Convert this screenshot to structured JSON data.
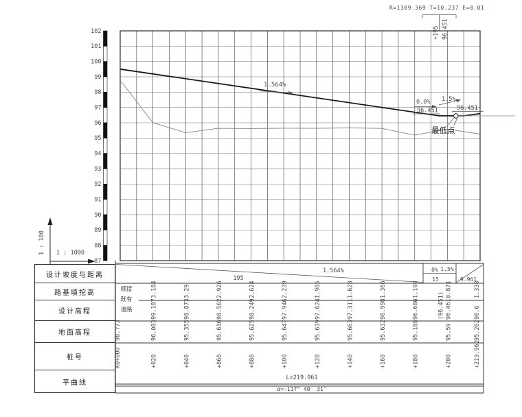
{
  "header_note": {
    "curve_params": "R=1309.369 T=10.237 E=0.01",
    "event_station": "+195",
    "event_elevation": "96.451"
  },
  "profile": {
    "main_grade": "1.564%",
    "flat_grade": "0.0%",
    "flat_elev": "96.451",
    "up_grade": "1.5%",
    "up_elev": "96.451",
    "low_point": "最低点"
  },
  "scales": {
    "vertical": "1 : 100",
    "horizontal": "1 : 1000"
  },
  "axis": {
    "elevations": [
      "102",
      "101",
      "100",
      "99",
      "98",
      "97",
      "96",
      "95",
      "94",
      "93",
      "92",
      "91",
      "90",
      "89",
      "88",
      "87"
    ]
  },
  "table": {
    "row_headers": [
      "设计坡度与距离",
      "路基填挖高",
      "设计高程",
      "地面高程",
      "桩号",
      "平曲线"
    ],
    "slope": {
      "main_grade": "1.564%",
      "main_len": "195",
      "seg2_grade": "0%",
      "seg2_len": "15",
      "seg3_grade": "1.5%",
      "seg3_len": "9.961"
    },
    "connect_note": [
      "顺接",
      "既有",
      "道路"
    ],
    "fill_heights": [
      "3.184",
      "3.29",
      "2.926",
      "2.624",
      "2.239",
      "1.985",
      "1.628",
      "1.366",
      "1.198",
      "0.871",
      "1.338"
    ],
    "design_elevations": [
      "99.187",
      "98.873",
      "98.562",
      "98.249",
      "97.946",
      "97.624",
      "97.311",
      "96.998",
      "96.686",
      "96.461",
      "96.6"
    ],
    "design_elevation_paren": "(96.451)",
    "ground_origin": "98.773",
    "ground_elevations": [
      "96.003",
      "95.355",
      "95.636",
      "95.625",
      "95.647",
      "95.639",
      "95.663",
      "95.632",
      "95.188",
      "95.59",
      "95.262"
    ],
    "station_origin": "K0+000",
    "stations": [
      "+020",
      "+040",
      "+060",
      "+080",
      "+100",
      "+120",
      "+140",
      "+160",
      "+180",
      "+200",
      "+219.961"
    ],
    "hcurve_length": "L=219.961",
    "hcurve_azimuth": "α=-117° 40′ 31″"
  },
  "chart_data": {
    "type": "line",
    "x": [
      0,
      20,
      40,
      60,
      80,
      100,
      120,
      140,
      160,
      180,
      200,
      219.961
    ],
    "series": [
      {
        "name": "设计高程",
        "values": [
          99.5,
          99.187,
          98.873,
          98.562,
          98.249,
          97.946,
          97.624,
          97.311,
          96.998,
          96.686,
          96.461,
          96.6
        ]
      },
      {
        "name": "地面高程",
        "values": [
          98.773,
          96.003,
          95.355,
          95.636,
          95.625,
          95.647,
          95.639,
          95.663,
          95.632,
          95.188,
          95.59,
          95.262
        ]
      }
    ],
    "ylim": [
      87,
      102
    ],
    "y_tick_step": 1,
    "grid": true,
    "grades": [
      {
        "grade_pct": -1.564,
        "length_m": 195
      },
      {
        "grade_pct": 0,
        "length_m": 15
      },
      {
        "grade_pct": 1.5,
        "length_m": 9.961
      }
    ],
    "grade_breaks": {
      "stations": [
        0,
        195,
        210,
        219.961
      ],
      "elevations": [
        99.5,
        96.451,
        96.451,
        96.6
      ]
    },
    "vertical_curve": {
      "R": 1309.369,
      "T": 10.237,
      "E": 0.01
    },
    "low_point": {
      "station": "K0+195",
      "elevation": 96.451
    }
  }
}
